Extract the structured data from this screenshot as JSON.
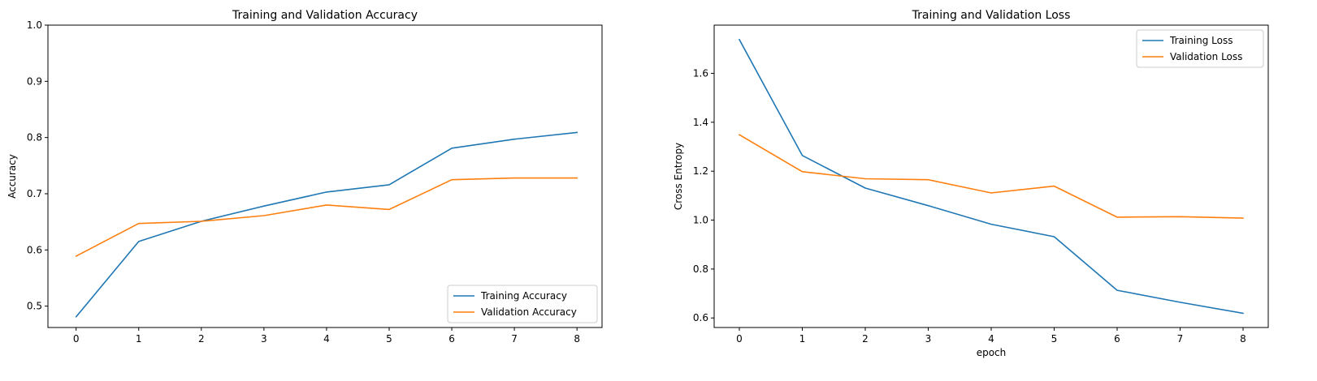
{
  "chart_data": [
    {
      "type": "line",
      "title": "Training and Validation Accuracy",
      "xlabel": "",
      "ylabel": "Accuracy",
      "x": [
        0,
        1,
        2,
        3,
        4,
        5,
        6,
        7,
        8
      ],
      "xlim": [
        -0.45,
        8.4
      ],
      "ylim": [
        0.462,
        1.0
      ],
      "xticks": [
        "0",
        "1",
        "2",
        "3",
        "4",
        "5",
        "6",
        "7",
        "8"
      ],
      "yticks": [
        "0.5",
        "0.6",
        "0.7",
        "0.8",
        "0.9",
        "1.0"
      ],
      "ytick_values": [
        0.5,
        0.6,
        0.7,
        0.8,
        0.9,
        1.0
      ],
      "legend_position": "lower-right",
      "grid": false,
      "series": [
        {
          "name": "Training Accuracy",
          "color": "#1f77b4",
          "values": [
            0.481,
            0.615,
            0.651,
            0.678,
            0.703,
            0.716,
            0.781,
            0.797,
            0.809
          ]
        },
        {
          "name": "Validation Accuracy",
          "color": "#ff7f0e",
          "values": [
            0.589,
            0.647,
            0.651,
            0.661,
            0.68,
            0.672,
            0.725,
            0.728,
            0.728
          ]
        }
      ]
    },
    {
      "type": "line",
      "title": "Training and Validation Loss",
      "xlabel": "epoch",
      "ylabel": "Cross Entropy",
      "x": [
        0,
        1,
        2,
        3,
        4,
        5,
        6,
        7,
        8
      ],
      "xlim": [
        -0.4,
        8.4
      ],
      "ylim": [
        0.561,
        1.797
      ],
      "xticks": [
        "0",
        "1",
        "2",
        "3",
        "4",
        "5",
        "6",
        "7",
        "8"
      ],
      "yticks": [
        "0.6",
        "0.8",
        "1.0",
        "1.2",
        "1.4",
        "1.6"
      ],
      "ytick_values": [
        0.6,
        0.8,
        1.0,
        1.2,
        1.4,
        1.6
      ],
      "legend_position": "upper-right",
      "grid": false,
      "series": [
        {
          "name": "Training Loss",
          "color": "#1f77b4",
          "values": [
            1.738,
            1.264,
            1.131,
            1.059,
            0.983,
            0.932,
            0.713,
            0.664,
            0.619
          ]
        },
        {
          "name": "Validation Loss",
          "color": "#ff7f0e",
          "values": [
            1.349,
            1.198,
            1.169,
            1.165,
            1.111,
            1.139,
            1.012,
            1.014,
            1.008
          ]
        }
      ]
    }
  ]
}
